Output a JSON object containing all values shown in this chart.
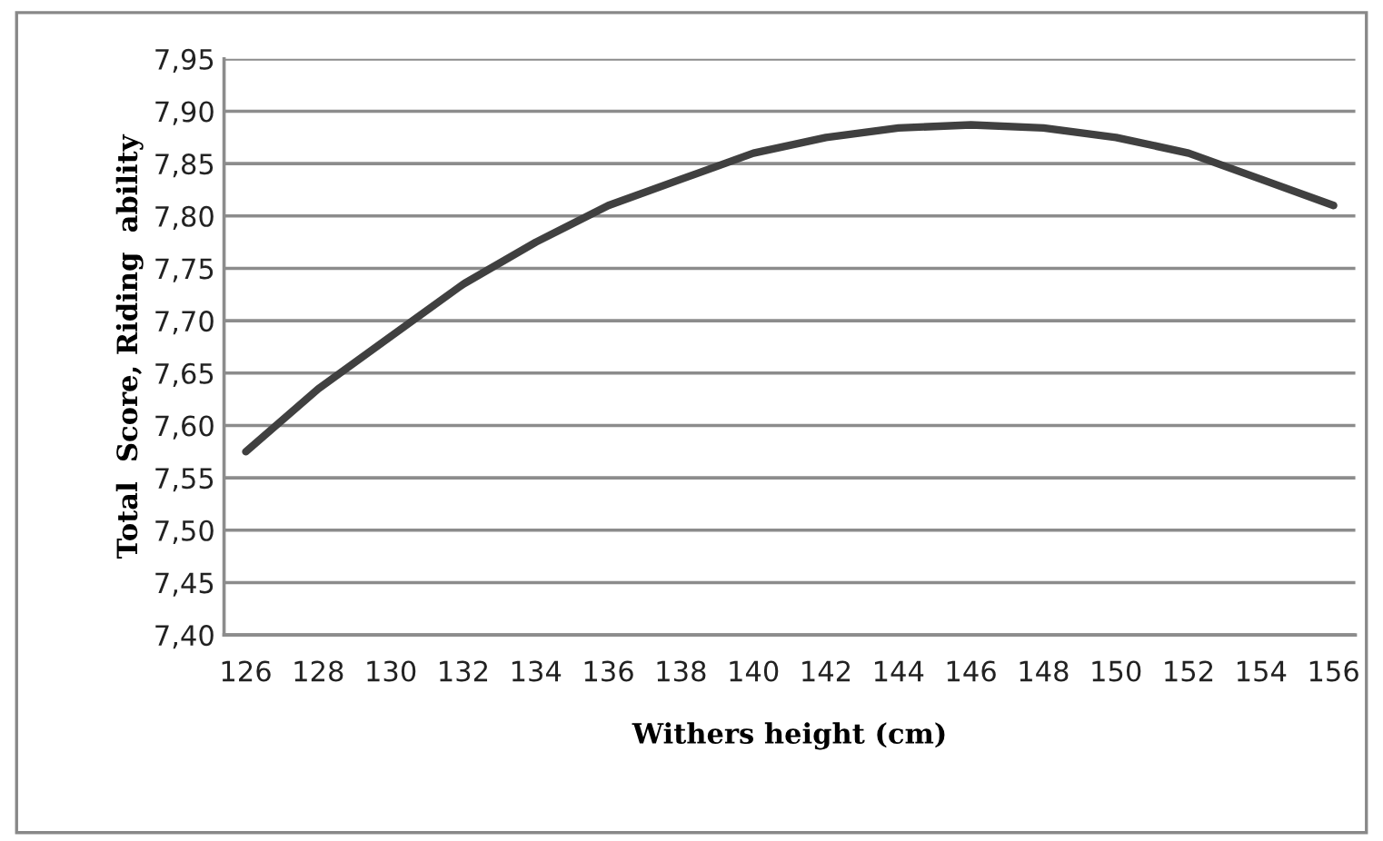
{
  "chart_data": {
    "type": "line",
    "xlabel": "Withers height (cm)",
    "ylabel": "Total  Score, Riding  ability",
    "categories": [
      "126",
      "128",
      "130",
      "132",
      "134",
      "136",
      "138",
      "140",
      "142",
      "144",
      "146",
      "148",
      "150",
      "152",
      "154",
      "156"
    ],
    "series": [
      {
        "color": "#404040",
        "values": [
          7.575,
          7.635,
          7.685,
          7.735,
          7.775,
          7.81,
          7.835,
          7.86,
          7.875,
          7.884,
          7.887,
          7.884,
          7.875,
          7.86,
          7.835,
          7.81
        ]
      }
    ],
    "ylim": [
      7.4,
      7.95
    ],
    "yticks": [
      {
        "value": 7.4,
        "label": "7,40"
      },
      {
        "value": 7.45,
        "label": "7,45"
      },
      {
        "value": 7.5,
        "label": "7,50"
      },
      {
        "value": 7.55,
        "label": "7,55"
      },
      {
        "value": 7.6,
        "label": "7,60"
      },
      {
        "value": 7.65,
        "label": "7,65"
      },
      {
        "value": 7.7,
        "label": "7,70"
      },
      {
        "value": 7.75,
        "label": "7,75"
      },
      {
        "value": 7.8,
        "label": "7,80"
      },
      {
        "value": 7.85,
        "label": "7,85"
      },
      {
        "value": 7.9,
        "label": "7,90"
      },
      {
        "value": 7.95,
        "label": "7,95"
      }
    ],
    "grid": "y",
    "marker": "none",
    "line_style": "solid"
  }
}
